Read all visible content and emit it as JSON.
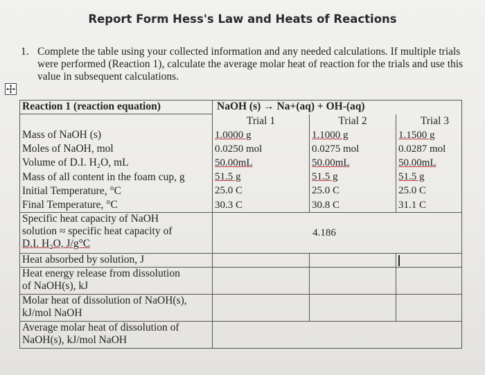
{
  "title": "Report Form Hess's Law and Heats of Reactions",
  "question": {
    "number": "1.",
    "text": "Complete the table using your collected information and any needed calculations. If multiple trials were performed (Reaction 1), calculate the average molar heat of reaction for the trials and use this value in subsequent calculations."
  },
  "table": {
    "header_label": "Reaction 1 (reaction equation)",
    "equation": "NaOH (s) → Na+(aq) + OH-(aq)",
    "trials": [
      "Trial 1",
      "Trial 2",
      "Trial 3"
    ],
    "rows_top": [
      "Mass of NaOH (s)",
      "Moles of NaOH, mol",
      "Volume of D.I. H₂O, mL",
      "Mass of all content in the foam cup, g",
      "Initial Temperature, °C",
      "Final Temperature, °C"
    ],
    "trial1": [
      "1.0000 g",
      "0.0250 mol",
      "50.00mL",
      "51.5 g",
      "25.0 C",
      "30.3 C"
    ],
    "trial2": [
      "1.1000 g",
      "0.0275 mol",
      "50.00mL",
      "51.5 g",
      "25.0 C",
      "30.8 C"
    ],
    "trial3": [
      "1.1500 g",
      "0.0287 mol",
      "50.00mL",
      "51.5 g",
      "25.0 C",
      "31.1 C"
    ],
    "specific_heat_label_1": "Specific heat capacity of NaOH",
    "specific_heat_label_2": "solution ≈ specific heat capacity of",
    "specific_heat_label_3": "D.I. H₂O, J/g°C",
    "specific_heat_value": "4.186",
    "heat_absorbed_label": "Heat absorbed by solution, J",
    "heat_release_label_1": "Heat energy release from dissolution",
    "heat_release_label_2": "of NaOH(s), kJ",
    "molar_heat_label_1": "Molar heat of dissolution of NaOH(s),",
    "molar_heat_label_2": "kJ/mol NaOH",
    "avg_molar_heat_label_1": "Average molar heat of dissolution of",
    "avg_molar_heat_label_2": "NaOH(s), kJ/mol NaOH"
  }
}
